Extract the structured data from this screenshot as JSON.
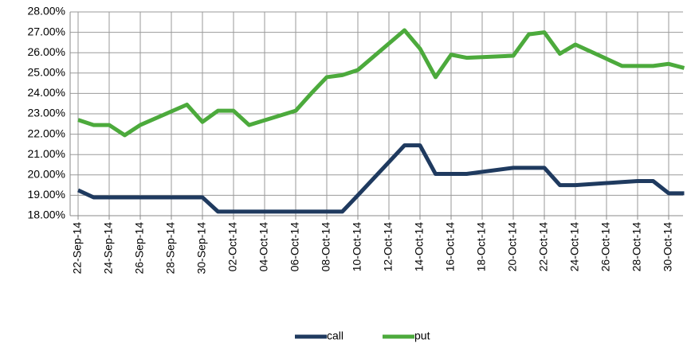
{
  "chart_data": {
    "type": "line",
    "x": [
      "22-Sep-14",
      "23-Sep-14",
      "24-Sep-14",
      "25-Sep-14",
      "26-Sep-14",
      "29-Sep-14",
      "30-Sep-14",
      "01-Oct-14",
      "02-Oct-14",
      "03-Oct-14",
      "06-Oct-14",
      "07-Oct-14",
      "08-Oct-14",
      "09-Oct-14",
      "10-Oct-14",
      "13-Oct-14",
      "14-Oct-14",
      "15-Oct-14",
      "16-Oct-14",
      "17-Oct-14",
      "20-Oct-14",
      "21-Oct-14",
      "22-Oct-14",
      "23-Oct-14",
      "24-Oct-14",
      "27-Oct-14",
      "28-Oct-14",
      "29-Oct-14",
      "30-Oct-14",
      "31-Oct-14"
    ],
    "series": [
      {
        "name": "call",
        "color": "#1f3a5f",
        "values": [
          19.25,
          18.9,
          18.9,
          18.9,
          18.9,
          18.9,
          18.9,
          18.2,
          18.2,
          18.2,
          18.2,
          18.2,
          18.2,
          18.2,
          19.0,
          21.45,
          21.45,
          20.05,
          20.05,
          20.05,
          20.35,
          20.35,
          20.35,
          19.5,
          19.5,
          19.65,
          19.7,
          19.7,
          19.1,
          19.1
        ]
      },
      {
        "name": "put",
        "color": "#4caa3c",
        "values": [
          22.7,
          22.45,
          22.45,
          21.95,
          22.45,
          23.45,
          22.6,
          23.15,
          23.15,
          22.45,
          23.15,
          24.0,
          24.8,
          24.9,
          25.15,
          27.1,
          26.2,
          24.8,
          25.9,
          25.75,
          25.85,
          26.9,
          27.0,
          25.95,
          26.4,
          25.35,
          25.35,
          25.35,
          25.45,
          25.25
        ]
      }
    ],
    "xticks": [
      "22-Sep-14",
      "24-Sep-14",
      "26-Sep-14",
      "28-Sep-14",
      "30-Sep-14",
      "02-Oct-14",
      "04-Oct-14",
      "06-Oct-14",
      "08-Oct-14",
      "10-Oct-14",
      "12-Oct-14",
      "14-Oct-14",
      "16-Oct-14",
      "18-Oct-14",
      "20-Oct-14",
      "22-Oct-14",
      "24-Oct-14",
      "26-Oct-14",
      "28-Oct-14",
      "30-Oct-14"
    ],
    "ylim": [
      18,
      28
    ],
    "yticks": [
      {
        "value": 18,
        "label": "18.00%"
      },
      {
        "value": 19,
        "label": "19.00%"
      },
      {
        "value": 20,
        "label": "20.00%"
      },
      {
        "value": 21,
        "label": "21.00%"
      },
      {
        "value": 22,
        "label": "22.00%"
      },
      {
        "value": 23,
        "label": "23.00%"
      },
      {
        "value": 24,
        "label": "24.00%"
      },
      {
        "value": 25,
        "label": "25.00%"
      },
      {
        "value": 26,
        "label": "26.00%"
      },
      {
        "value": 27,
        "label": "27.00%"
      },
      {
        "value": 28,
        "label": "28.00%"
      }
    ],
    "grid": true,
    "legend": "bottom"
  }
}
